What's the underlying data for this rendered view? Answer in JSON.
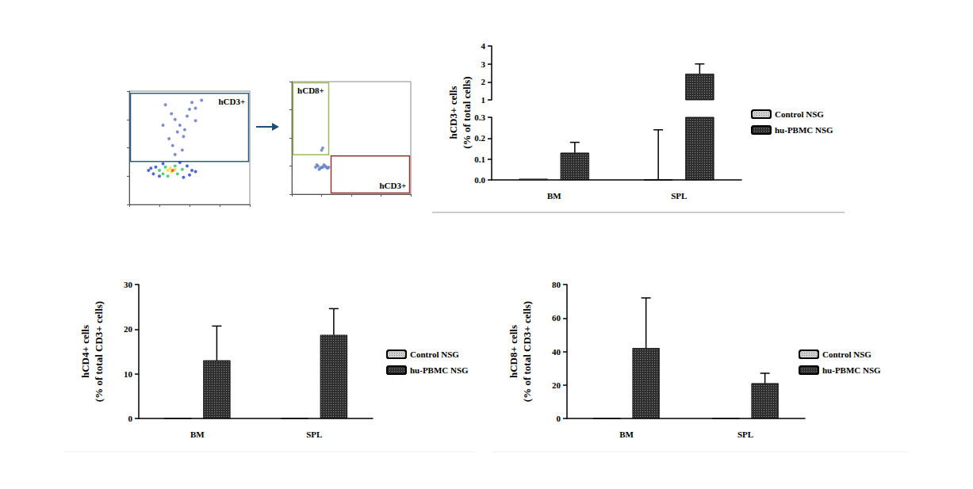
{
  "chart_data": [
    {
      "type": "scatter",
      "tick_labels": false,
      "xlim": [
        0,
        100
      ],
      "ylim": [
        0,
        100
      ],
      "xticks": [
        0,
        25,
        50,
        75,
        100
      ],
      "yticks": [
        0,
        25,
        50,
        75,
        100
      ],
      "x": [
        30,
        35,
        38,
        42,
        40,
        45,
        50,
        52,
        55,
        48,
        33,
        36,
        44,
        38,
        60,
        28,
        46,
        55,
        16,
        20,
        22,
        25,
        28,
        48,
        52,
        50,
        45,
        55,
        18,
        42,
        25,
        28,
        30,
        44,
        40,
        38,
        32,
        32,
        35,
        38,
        34,
        36
      ],
      "y": [
        88,
        80,
        75,
        70,
        64,
        60,
        84,
        90,
        85,
        78,
        58,
        52,
        48,
        44,
        92,
        70,
        66,
        74,
        30,
        27,
        33,
        25,
        36,
        34,
        30,
        26,
        24,
        29,
        32,
        37,
        30,
        27,
        33,
        31,
        27,
        34,
        25,
        30,
        29,
        31,
        32,
        30
      ],
      "colors": [
        "#6070c0",
        "#6070c0",
        "#6070c0",
        "#6070c0",
        "#6070c0",
        "#6070c0",
        "#6070c0",
        "#6070c0",
        "#6070c0",
        "#6070c0",
        "#6070c0",
        "#6070c0",
        "#6070c0",
        "#6070c0",
        "#6070c0",
        "#6070c0",
        "#6070c0",
        "#6070c0",
        "#2040d0",
        "#2040d0",
        "#2040d0",
        "#2040d0",
        "#2040d0",
        "#2040d0",
        "#2040d0",
        "#2040d0",
        "#2040d0",
        "#2040d0",
        "#2040d0",
        "#2040d0",
        "#30c060",
        "#30c060",
        "#30c060",
        "#30c060",
        "#30c060",
        "#30c060",
        "#30c060",
        "#f0e020",
        "#f0e020",
        "#f0e020",
        "#f0e020",
        "#f04020"
      ],
      "gates": [
        {
          "label": "hCD3+",
          "color": "#2e5c8a",
          "x": [
            1,
            99
          ],
          "y": [
            38,
            98
          ]
        }
      ]
    },
    {
      "type": "scatter",
      "tick_labels": false,
      "xlim": [
        0,
        100
      ],
      "ylim": [
        0,
        100
      ],
      "xticks": [
        0,
        25,
        50,
        75,
        100
      ],
      "yticks": [
        0,
        25,
        50,
        75,
        100
      ],
      "x": [
        20,
        22,
        24,
        26,
        28,
        30,
        23,
        27,
        25,
        29,
        21,
        31,
        25,
        26
      ],
      "y": [
        24,
        25,
        23,
        24,
        25,
        23,
        22,
        26,
        24,
        24,
        26,
        24,
        39,
        41
      ],
      "colors": [
        "#6080c0",
        "#6080c0",
        "#6080c0",
        "#6080c0",
        "#6080c0",
        "#6080c0",
        "#6080c0",
        "#6080c0",
        "#6080c0",
        "#6080c0",
        "#6080c0",
        "#6080c0",
        "#6080c0",
        "#6080c0"
      ],
      "gates": [
        {
          "label": "hCD8+",
          "color": "#9bbb59",
          "x": [
            1,
            31
          ],
          "y": [
            35,
            99
          ]
        },
        {
          "label": "hCD3+",
          "color": "#953735",
          "x": [
            33,
            99
          ],
          "y": [
            1,
            34
          ]
        }
      ]
    },
    {
      "type": "bar",
      "ylabel": "hCD3+ cells\n(% of total cells)",
      "categories": [
        "BM",
        "SPL"
      ],
      "series": [
        {
          "name": "Control NSG",
          "color": "#d0d0d0",
          "values": [
            0.005,
            0
          ],
          "errors": [
            0,
            0.24
          ]
        },
        {
          "name": "hu-PBMC NSG",
          "color": "#2f2f2f",
          "values": [
            0.13,
            2.45
          ],
          "errors": [
            0.05,
            0.55
          ]
        }
      ],
      "ylim": [
        0,
        4
      ],
      "axis_break": [
        0.3,
        1
      ],
      "yticks": [
        {
          "value": 0,
          "label": "0.0"
        },
        0.1,
        0.2,
        0.3,
        1,
        2,
        3,
        4
      ],
      "legend": "right"
    },
    {
      "type": "bar",
      "ylabel": "hCD4+ cells\n(% of total CD3+ cells)",
      "categories": [
        "BM",
        "SPL"
      ],
      "series": [
        {
          "name": "Control NSG",
          "color": "#d0d0d0",
          "values": [
            0,
            0
          ],
          "errors": [
            0,
            0
          ]
        },
        {
          "name": "hu-PBMC NSG",
          "color": "#2f2f2f",
          "values": [
            13,
            18.7
          ],
          "errors": [
            7.7,
            5.9
          ]
        }
      ],
      "ylim": [
        0,
        30
      ],
      "yticks": [
        0,
        10,
        20,
        30
      ],
      "legend": "right"
    },
    {
      "type": "bar",
      "ylabel": "hCD8+ cells\n(% of total CD3+ cells)",
      "categories": [
        "BM",
        "SPL"
      ],
      "series": [
        {
          "name": "Control NSG",
          "color": "#d0d0d0",
          "values": [
            0,
            0
          ],
          "errors": [
            0,
            0
          ]
        },
        {
          "name": "hu-PBMC NSG",
          "color": "#2f2f2f",
          "values": [
            42,
            21
          ],
          "errors": [
            30,
            6
          ]
        }
      ],
      "ylim": [
        0,
        80
      ],
      "yticks": [
        0,
        20,
        40,
        60,
        80
      ],
      "legend": "right"
    }
  ]
}
